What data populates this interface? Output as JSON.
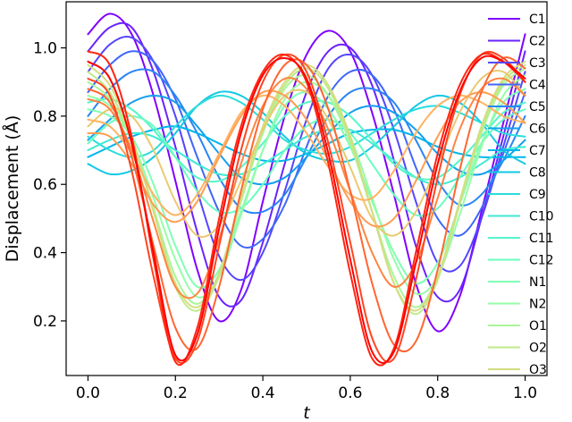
{
  "chart_data": {
    "type": "line",
    "xlabel": "t",
    "ylabel": "Displacement (Å)",
    "xlim": [
      -0.05,
      1.05
    ],
    "ylim": [
      0.04,
      1.135
    ],
    "xticks": [
      0.0,
      0.2,
      0.4,
      0.6,
      0.8,
      1.0
    ],
    "xtick_labels": [
      "0.0",
      "0.2",
      "0.4",
      "0.6",
      "0.8",
      "1.0"
    ],
    "yticks": [
      0.2,
      0.4,
      0.6,
      0.8,
      1.0
    ],
    "ytick_labels": [
      "0.2",
      "0.4",
      "0.6",
      "0.8",
      "1.0"
    ],
    "grid": false,
    "legend_placement": "right",
    "x": [
      0.0,
      0.05,
      0.1,
      0.15,
      0.2,
      0.25,
      0.3,
      0.35,
      0.4,
      0.45,
      0.5,
      0.55,
      0.6,
      0.65,
      0.7,
      0.75,
      0.8,
      0.85,
      0.9,
      0.95,
      1.0
    ],
    "series": [
      {
        "name": "C1",
        "color": "#8000ff",
        "values": [
          1.04,
          1.1,
          1.04,
          0.86,
          0.61,
          0.35,
          0.2,
          0.29,
          0.55,
          0.8,
          0.98,
          1.05,
          0.99,
          0.81,
          0.57,
          0.31,
          0.17,
          0.27,
          0.52,
          0.78,
          1.04
        ]
      },
      {
        "name": "C2",
        "color": "#6a23fe",
        "values": [
          0.99,
          1.06,
          1.06,
          0.93,
          0.71,
          0.46,
          0.27,
          0.26,
          0.43,
          0.66,
          0.87,
          0.99,
          1.0,
          0.89,
          0.67,
          0.42,
          0.27,
          0.29,
          0.5,
          0.74,
          0.99
        ]
      },
      {
        "name": "C3",
        "color": "#5545fd",
        "values": [
          0.93,
          1.01,
          1.03,
          0.96,
          0.8,
          0.58,
          0.39,
          0.32,
          0.4,
          0.58,
          0.79,
          0.94,
          0.98,
          0.92,
          0.76,
          0.55,
          0.37,
          0.36,
          0.5,
          0.71,
          0.93
        ]
      },
      {
        "name": "C4",
        "color": "#3f67f9",
        "values": [
          0.87,
          0.95,
          0.99,
          0.96,
          0.85,
          0.68,
          0.52,
          0.42,
          0.44,
          0.54,
          0.71,
          0.86,
          0.93,
          0.92,
          0.82,
          0.65,
          0.5,
          0.45,
          0.53,
          0.69,
          0.87
        ]
      },
      {
        "name": "C5",
        "color": "#2a85f5",
        "values": [
          0.8,
          0.88,
          0.93,
          0.93,
          0.86,
          0.75,
          0.62,
          0.53,
          0.52,
          0.57,
          0.68,
          0.8,
          0.87,
          0.88,
          0.84,
          0.73,
          0.61,
          0.54,
          0.57,
          0.67,
          0.8
        ]
      },
      {
        "name": "C6",
        "color": "#149ff0",
        "values": [
          0.73,
          0.79,
          0.84,
          0.86,
          0.84,
          0.77,
          0.69,
          0.62,
          0.6,
          0.62,
          0.68,
          0.75,
          0.81,
          0.83,
          0.81,
          0.76,
          0.69,
          0.64,
          0.63,
          0.67,
          0.73
        ]
      },
      {
        "name": "C7",
        "color": "#00b5eb",
        "values": [
          0.68,
          0.71,
          0.74,
          0.76,
          0.77,
          0.75,
          0.72,
          0.69,
          0.67,
          0.67,
          0.69,
          0.72,
          0.75,
          0.76,
          0.76,
          0.74,
          0.71,
          0.69,
          0.68,
          0.68,
          0.68
        ]
      },
      {
        "name": "C8",
        "color": "#14c9e3",
        "values": [
          0.66,
          0.63,
          0.64,
          0.68,
          0.75,
          0.83,
          0.87,
          0.86,
          0.81,
          0.74,
          0.69,
          0.67,
          0.67,
          0.71,
          0.77,
          0.83,
          0.86,
          0.84,
          0.78,
          0.7,
          0.66
        ]
      },
      {
        "name": "C9",
        "color": "#2adddd",
        "values": [
          0.74,
          0.7,
          0.68,
          0.7,
          0.77,
          0.83,
          0.86,
          0.84,
          0.79,
          0.73,
          0.7,
          0.69,
          0.71,
          0.75,
          0.79,
          0.82,
          0.83,
          0.81,
          0.78,
          0.75,
          0.74
        ]
      },
      {
        "name": "C10",
        "color": "#3fead4",
        "values": [
          0.7,
          0.73,
          0.75,
          0.74,
          0.7,
          0.66,
          0.63,
          0.63,
          0.66,
          0.7,
          0.74,
          0.76,
          0.76,
          0.72,
          0.67,
          0.62,
          0.6,
          0.62,
          0.66,
          0.7,
          0.71
        ]
      },
      {
        "name": "C11",
        "color": "#55f5ca",
        "values": [
          0.84,
          0.85,
          0.82,
          0.76,
          0.68,
          0.62,
          0.61,
          0.65,
          0.72,
          0.8,
          0.84,
          0.84,
          0.8,
          0.73,
          0.66,
          0.62,
          0.62,
          0.67,
          0.74,
          0.81,
          0.84
        ]
      },
      {
        "name": "C12",
        "color": "#6afdbf",
        "values": [
          0.72,
          0.78,
          0.8,
          0.77,
          0.68,
          0.58,
          0.52,
          0.53,
          0.6,
          0.7,
          0.77,
          0.79,
          0.75,
          0.66,
          0.57,
          0.51,
          0.53,
          0.62,
          0.72,
          0.79,
          0.82
        ]
      },
      {
        "name": "N1",
        "color": "#80ffb4",
        "values": [
          0.82,
          0.8,
          0.74,
          0.6,
          0.42,
          0.3,
          0.35,
          0.52,
          0.7,
          0.83,
          0.87,
          0.82,
          0.71,
          0.55,
          0.4,
          0.31,
          0.37,
          0.54,
          0.72,
          0.84,
          0.88
        ]
      },
      {
        "name": "N2",
        "color": "#95fda7",
        "values": [
          0.86,
          0.83,
          0.73,
          0.56,
          0.38,
          0.27,
          0.33,
          0.51,
          0.7,
          0.85,
          0.9,
          0.86,
          0.74,
          0.56,
          0.38,
          0.28,
          0.33,
          0.51,
          0.71,
          0.86,
          0.92
        ]
      },
      {
        "name": "O1",
        "color": "#aaf599",
        "values": [
          0.9,
          0.85,
          0.73,
          0.53,
          0.33,
          0.25,
          0.34,
          0.55,
          0.75,
          0.88,
          0.92,
          0.86,
          0.72,
          0.52,
          0.33,
          0.24,
          0.33,
          0.54,
          0.75,
          0.89,
          0.94
        ]
      },
      {
        "name": "O2",
        "color": "#bfea8a",
        "values": [
          0.93,
          0.87,
          0.73,
          0.52,
          0.3,
          0.23,
          0.33,
          0.55,
          0.76,
          0.89,
          0.94,
          0.88,
          0.73,
          0.52,
          0.31,
          0.22,
          0.32,
          0.54,
          0.76,
          0.9,
          0.95
        ]
      },
      {
        "name": "O3",
        "color": "#d4dd80",
        "values": [
          0.95,
          0.89,
          0.74,
          0.52,
          0.31,
          0.24,
          0.34,
          0.56,
          0.77,
          0.9,
          0.95,
          0.89,
          0.74,
          0.52,
          0.31,
          0.23,
          0.33,
          0.55,
          0.77,
          0.91,
          0.96
        ]
      },
      {
        "name": "",
        "color": "#eac96f",
        "values": [
          0.77,
          0.82,
          0.8,
          0.7,
          0.55,
          0.45,
          0.48,
          0.61,
          0.76,
          0.86,
          0.87,
          0.79,
          0.65,
          0.5,
          0.45,
          0.52,
          0.66,
          0.81,
          0.91,
          0.93,
          0.86
        ]
      },
      {
        "name": "",
        "color": "#ffb360",
        "values": [
          0.79,
          0.77,
          0.69,
          0.57,
          0.51,
          0.57,
          0.69,
          0.81,
          0.86,
          0.83,
          0.75,
          0.65,
          0.57,
          0.56,
          0.64,
          0.75,
          0.83,
          0.86,
          0.84,
          0.8,
          0.78
        ]
      },
      {
        "name": "",
        "color": "#ff9d51",
        "values": [
          0.75,
          0.74,
          0.66,
          0.54,
          0.49,
          0.55,
          0.68,
          0.8,
          0.87,
          0.86,
          0.79,
          0.67,
          0.55,
          0.48,
          0.5,
          0.61,
          0.74,
          0.84,
          0.87,
          0.84,
          0.78
        ]
      },
      {
        "name": "",
        "color": "#ff8442",
        "values": [
          0.85,
          0.82,
          0.7,
          0.49,
          0.3,
          0.28,
          0.44,
          0.66,
          0.83,
          0.91,
          0.88,
          0.76,
          0.58,
          0.4,
          0.3,
          0.37,
          0.56,
          0.76,
          0.88,
          0.91,
          0.86
        ]
      },
      {
        "name": "",
        "color": "#ff6631",
        "values": [
          0.88,
          0.84,
          0.68,
          0.42,
          0.18,
          0.12,
          0.3,
          0.58,
          0.82,
          0.95,
          0.95,
          0.82,
          0.58,
          0.31,
          0.13,
          0.14,
          0.35,
          0.64,
          0.87,
          0.97,
          0.94
        ]
      },
      {
        "name": "",
        "color": "#ff4521",
        "values": [
          0.91,
          0.86,
          0.64,
          0.33,
          0.09,
          0.14,
          0.42,
          0.7,
          0.9,
          0.98,
          0.93,
          0.72,
          0.43,
          0.15,
          0.09,
          0.32,
          0.62,
          0.86,
          0.98,
          0.97,
          0.9
        ]
      },
      {
        "name": "",
        "color": "#ff2510",
        "values": [
          0.99,
          0.95,
          0.74,
          0.38,
          0.08,
          0.18,
          0.5,
          0.77,
          0.93,
          0.98,
          0.9,
          0.66,
          0.34,
          0.09,
          0.12,
          0.4,
          0.69,
          0.89,
          0.98,
          0.96,
          0.9
        ]
      },
      {
        "name": "",
        "color": "#ff0000",
        "values": [
          0.96,
          0.91,
          0.72,
          0.4,
          0.1,
          0.16,
          0.47,
          0.75,
          0.92,
          0.97,
          0.91,
          0.69,
          0.38,
          0.11,
          0.11,
          0.37,
          0.66,
          0.87,
          0.97,
          0.96,
          0.91
        ]
      }
    ]
  }
}
